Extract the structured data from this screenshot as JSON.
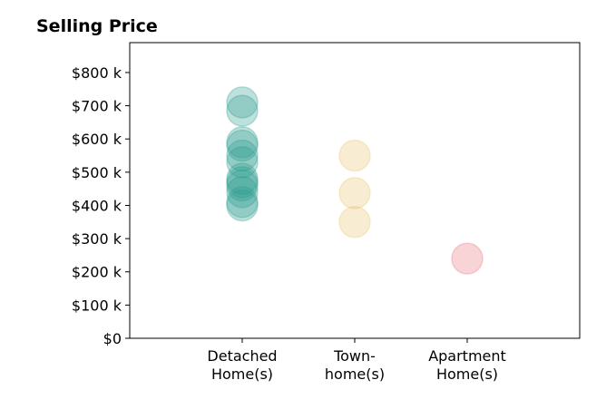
{
  "chart_data": {
    "type": "scatter",
    "title": "Selling Price",
    "xlabel": "",
    "ylabel": "",
    "ylim": [
      0,
      890
    ],
    "y_unit": "thousand dollars",
    "y_ticks": [
      0,
      100,
      200,
      300,
      400,
      500,
      600,
      700,
      800
    ],
    "y_tick_labels": [
      "$0",
      "$100 k",
      "$200 k",
      "$300 k",
      "$400 k",
      "$500 k",
      "$600 k",
      "$700 k",
      "$800 k"
    ],
    "grid": false,
    "categories": [
      {
        "lines": [
          "Detached",
          "Home(s)"
        ]
      },
      {
        "lines": [
          "Town-",
          "home(s)"
        ]
      },
      {
        "lines": [
          "Apartment",
          "Home(s)"
        ]
      }
    ],
    "series": [
      {
        "category": 0,
        "color": "#2a9d8f",
        "values": [
          710,
          685,
          590,
          580,
          550,
          530,
          480,
          470,
          460,
          440,
          410,
          400
        ]
      },
      {
        "category": 1,
        "color": "#e9c46a",
        "values": [
          550,
          437,
          350
        ]
      },
      {
        "category": 2,
        "color": "#e76f7a",
        "values": [
          240
        ]
      }
    ],
    "marker_opacity": 0.3
  }
}
